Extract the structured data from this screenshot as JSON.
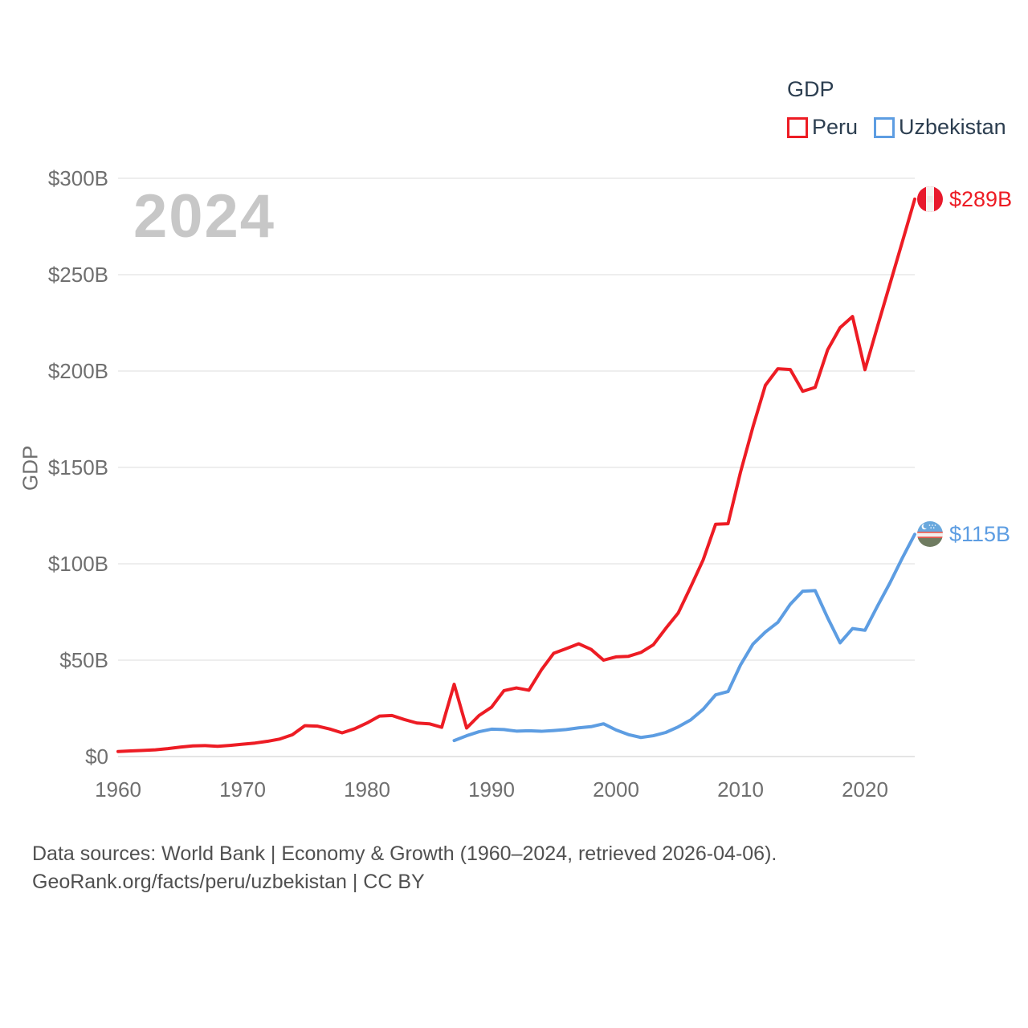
{
  "watermark_year": "2024",
  "legend": {
    "title": "GDP",
    "items": [
      {
        "label": "Peru",
        "color": "#ed1c24"
      },
      {
        "label": "Uzbekistan",
        "color": "#5d9de2"
      }
    ]
  },
  "footer": {
    "line1": "Data sources: World Bank | Economy & Growth (1960–2024, retrieved 2026-04-06).",
    "line2": "GeoRank.org/facts/peru/uzbekistan | CC BY"
  },
  "chart_data": {
    "type": "line",
    "title": "GDP",
    "ylabel": "GDP",
    "xlabel": "",
    "x_range": [
      1960,
      2024
    ],
    "ylim": [
      0,
      300
    ],
    "grid": "horizontal",
    "legend_position": "top-right",
    "y_ticks": [
      {
        "value": 0,
        "label": "$0"
      },
      {
        "value": 50,
        "label": "$50B"
      },
      {
        "value": 100,
        "label": "$100B"
      },
      {
        "value": 150,
        "label": "$150B"
      },
      {
        "value": 200,
        "label": "$200B"
      },
      {
        "value": 250,
        "label": "$250B"
      },
      {
        "value": 300,
        "label": "$300B"
      }
    ],
    "x_ticks": [
      {
        "value": 1960,
        "label": "1960"
      },
      {
        "value": 1970,
        "label": "1970"
      },
      {
        "value": 1980,
        "label": "1980"
      },
      {
        "value": 1990,
        "label": "1990"
      },
      {
        "value": 2000,
        "label": "2000"
      },
      {
        "value": 2010,
        "label": "2010"
      },
      {
        "value": 2020,
        "label": "2020"
      }
    ],
    "series": [
      {
        "name": "Peru",
        "color": "#ed1c24",
        "end_label": "$289B",
        "flag_icon": "peru-flag-icon",
        "years": [
          1960,
          1961,
          1962,
          1963,
          1964,
          1965,
          1966,
          1967,
          1968,
          1969,
          1970,
          1971,
          1972,
          1973,
          1974,
          1975,
          1976,
          1977,
          1978,
          1979,
          1980,
          1981,
          1982,
          1983,
          1984,
          1985,
          1986,
          1987,
          1988,
          1989,
          1990,
          1991,
          1992,
          1993,
          1994,
          1995,
          1996,
          1997,
          1998,
          1999,
          2000,
          2001,
          2002,
          2003,
          2004,
          2005,
          2006,
          2007,
          2008,
          2009,
          2010,
          2011,
          2012,
          2013,
          2014,
          2015,
          2016,
          2017,
          2018,
          2019,
          2020,
          2021,
          2022,
          2023,
          2024
        ],
        "values": [
          2.6,
          2.9,
          3.2,
          3.5,
          4.1,
          4.9,
          5.5,
          5.7,
          5.3,
          5.8,
          6.4,
          7.0,
          7.9,
          9.1,
          11.3,
          16.0,
          15.8,
          14.3,
          12.3,
          14.4,
          17.4,
          21.0,
          21.3,
          19.2,
          17.4,
          17.0,
          15.2,
          37.5,
          14.8,
          21.3,
          25.6,
          34.2,
          35.6,
          34.4,
          44.9,
          53.6,
          56.0,
          58.5,
          55.6,
          50.0,
          51.7,
          52.0,
          54.0,
          58.0,
          66.5,
          74.5,
          88.0,
          102.0,
          120.5,
          120.8,
          147.5,
          171.0,
          192.6,
          201.2,
          200.8,
          189.5,
          191.5,
          211.0,
          222.5,
          228.3,
          200.7,
          223.0,
          245.0,
          267.0,
          289.2
        ]
      },
      {
        "name": "Uzbekistan",
        "color": "#5d9de2",
        "end_label": "$115B",
        "flag_icon": "uzbekistan-flag-icon",
        "years": [
          1987,
          1988,
          1989,
          1990,
          1991,
          1992,
          1993,
          1994,
          1995,
          1996,
          1997,
          1998,
          1999,
          2000,
          2001,
          2002,
          2003,
          2004,
          2005,
          2006,
          2007,
          2008,
          2009,
          2010,
          2011,
          2012,
          2013,
          2014,
          2015,
          2016,
          2017,
          2018,
          2019,
          2020,
          2021,
          2022,
          2023,
          2024
        ],
        "values": [
          8.3,
          10.8,
          12.9,
          14.2,
          14.0,
          13.2,
          13.4,
          13.1,
          13.5,
          14.0,
          14.9,
          15.5,
          17.0,
          13.8,
          11.4,
          9.9,
          10.8,
          12.5,
          15.4,
          19.0,
          24.5,
          32.0,
          33.7,
          47.5,
          58.3,
          64.6,
          69.6,
          79.0,
          85.8,
          86.1,
          72.0,
          59.0,
          66.4,
          65.5,
          78.0,
          90.0,
          103.0,
          115.3
        ]
      }
    ]
  }
}
